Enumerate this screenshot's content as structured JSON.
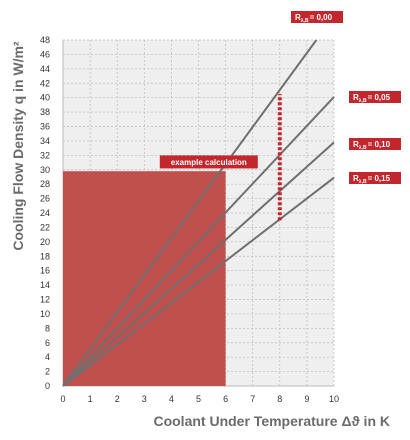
{
  "chart_data": {
    "type": "line",
    "xlabel": "Coolant Under Temperature Δϑ in K",
    "ylabel": "Cooling Flow Density q in W/m²",
    "xlim": [
      0,
      10
    ],
    "ylim": [
      0,
      48
    ],
    "x_ticks": [
      "0",
      "1",
      "2",
      "3",
      "4",
      "5",
      "6",
      "7",
      "8",
      "9",
      "10"
    ],
    "y_ticks": [
      "0",
      "2",
      "4",
      "6",
      "8",
      "10",
      "12",
      "14",
      "16",
      "18",
      "20",
      "22",
      "24",
      "26",
      "28",
      "30",
      "32",
      "34",
      "36",
      "38",
      "40",
      "42",
      "44",
      "46",
      "48"
    ],
    "grid": true,
    "series": [
      {
        "label_prefix": "R",
        "label_sub": "λ,B",
        "label_value": "= 0,00",
        "x": [
          0,
          9.35
        ],
        "y": [
          0,
          48
        ]
      },
      {
        "label_prefix": "R",
        "label_sub": "λ,B",
        "label_value": "= 0,05",
        "x": [
          0,
          10
        ],
        "y": [
          0,
          40.1
        ]
      },
      {
        "label_prefix": "R",
        "label_sub": "λ,B",
        "label_value": "= 0,10",
        "x": [
          0,
          10
        ],
        "y": [
          0,
          33.8
        ]
      },
      {
        "label_prefix": "R",
        "label_sub": "λ,B",
        "label_value": "= 0,15",
        "x": [
          0,
          10
        ],
        "y": [
          0,
          28.9
        ]
      }
    ],
    "annotation": {
      "label": "example calculation",
      "region": {
        "x": [
          0,
          6
        ],
        "y": [
          0,
          29.8
        ]
      },
      "marker": {
        "x": 8,
        "y": [
          23,
          40.5
        ]
      }
    },
    "colors": {
      "line": "#6f6f6f",
      "region": "#c0504d",
      "accent": "#c1272d",
      "grid": "#b8b8b8",
      "plot_background": "#efefef"
    }
  }
}
